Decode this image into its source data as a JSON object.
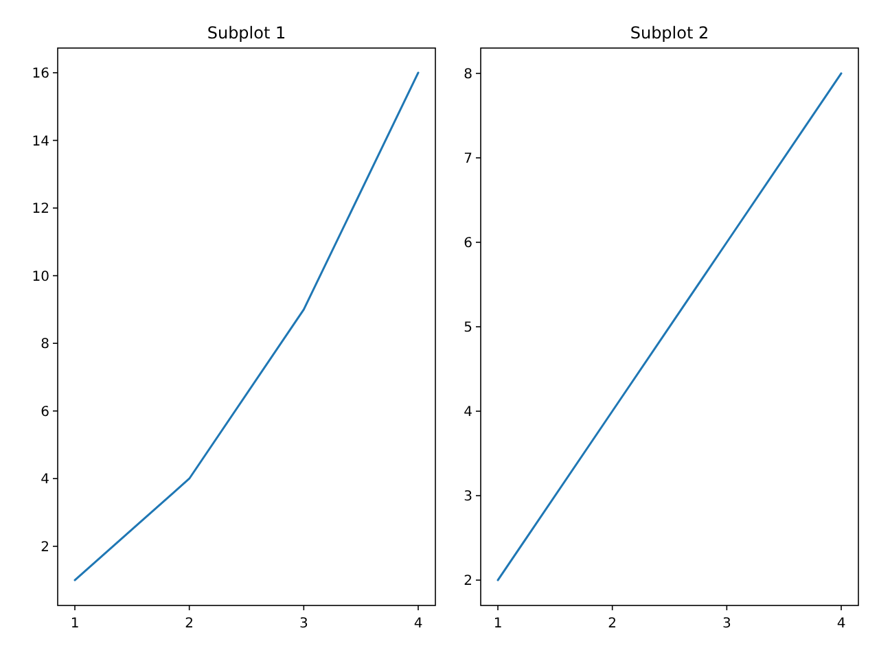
{
  "chart_data": [
    {
      "type": "line",
      "title": "Subplot 1",
      "x": [
        1,
        2,
        3,
        4
      ],
      "series": [
        {
          "color": "#1f77b4",
          "values": [
            1,
            4,
            9,
            16
          ]
        }
      ],
      "xlim": [
        0.85,
        4.15
      ],
      "ylim": [
        0.25,
        16.73
      ],
      "xticks": [
        1,
        2,
        3,
        4
      ],
      "yticks": [
        2,
        4,
        6,
        8,
        10,
        12,
        14,
        16
      ],
      "grid": false
    },
    {
      "type": "line",
      "title": "Subplot 2",
      "x": [
        1,
        2,
        3,
        4
      ],
      "series": [
        {
          "color": "#1f77b4",
          "values": [
            2,
            4,
            6,
            8
          ]
        }
      ],
      "xlim": [
        0.85,
        4.15
      ],
      "ylim": [
        1.7,
        8.3
      ],
      "xticks": [
        1,
        2,
        3,
        4
      ],
      "yticks": [
        2,
        3,
        4,
        5,
        6,
        7,
        8
      ],
      "grid": false
    }
  ]
}
